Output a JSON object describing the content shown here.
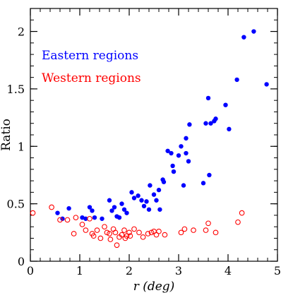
{
  "colors": {
    "eastern": "#0000ff",
    "western": "#ff0000",
    "axis": "#000000",
    "background": "#ffffff"
  },
  "legend": {
    "eastern": "Eastern regions",
    "western": "Western regions"
  },
  "chart_data": {
    "type": "scatter",
    "xlabel": "r (deg)",
    "ylabel": "Ratio",
    "xlim": [
      0,
      5
    ],
    "ylim": [
      0,
      2.2
    ],
    "x_ticks": [
      0,
      1,
      2,
      3,
      4,
      5
    ],
    "y_ticks": [
      0,
      0.5,
      1,
      1.5,
      2
    ],
    "y_tick_labels": [
      "0",
      "0.5",
      "1",
      "1.5",
      "2"
    ],
    "x_minor_step": 0.2,
    "y_minor_step": 0.1,
    "grid": false,
    "legend_position": "top-left",
    "series": [
      {
        "name": "Eastern regions",
        "marker": "filled-circle",
        "color": "#0000ff",
        "points": [
          [
            0.55,
            0.42
          ],
          [
            0.65,
            0.37
          ],
          [
            0.78,
            0.46
          ],
          [
            1.05,
            0.38
          ],
          [
            1.12,
            0.37
          ],
          [
            1.2,
            0.47
          ],
          [
            1.25,
            0.44
          ],
          [
            1.3,
            0.38
          ],
          [
            1.45,
            0.37
          ],
          [
            1.6,
            0.53
          ],
          [
            1.65,
            0.44
          ],
          [
            1.7,
            0.47
          ],
          [
            1.75,
            0.39
          ],
          [
            1.8,
            0.38
          ],
          [
            1.85,
            0.5
          ],
          [
            1.9,
            0.45
          ],
          [
            1.95,
            0.42
          ],
          [
            2.05,
            0.6
          ],
          [
            2.1,
            0.55
          ],
          [
            2.18,
            0.57
          ],
          [
            2.25,
            0.53
          ],
          [
            2.3,
            0.48
          ],
          [
            2.35,
            0.52
          ],
          [
            2.4,
            0.45
          ],
          [
            2.42,
            0.66
          ],
          [
            2.5,
            0.58
          ],
          [
            2.55,
            0.53
          ],
          [
            2.6,
            0.62
          ],
          [
            2.62,
            0.45
          ],
          [
            2.68,
            0.71
          ],
          [
            2.7,
            0.69
          ],
          [
            2.78,
            0.96
          ],
          [
            2.85,
            0.94
          ],
          [
            2.88,
            0.83
          ],
          [
            2.9,
            0.78
          ],
          [
            3.0,
            0.92
          ],
          [
            3.05,
            1.0
          ],
          [
            3.1,
            0.66
          ],
          [
            3.15,
            0.94
          ],
          [
            3.15,
            1.07
          ],
          [
            3.2,
            0.87
          ],
          [
            3.22,
            1.19
          ],
          [
            3.5,
            0.68
          ],
          [
            3.55,
            1.2
          ],
          [
            3.6,
            1.42
          ],
          [
            3.62,
            0.75
          ],
          [
            3.65,
            1.2
          ],
          [
            3.72,
            1.22
          ],
          [
            3.75,
            1.24
          ],
          [
            3.95,
            1.36
          ],
          [
            4.02,
            1.15
          ],
          [
            4.18,
            1.58
          ],
          [
            4.32,
            1.95
          ],
          [
            4.52,
            2.0
          ],
          [
            4.78,
            1.54
          ]
        ]
      },
      {
        "name": "Western regions",
        "marker": "open-circle",
        "color": "#ff0000",
        "points": [
          [
            0.05,
            0.42
          ],
          [
            0.43,
            0.47
          ],
          [
            0.6,
            0.36
          ],
          [
            0.75,
            0.36
          ],
          [
            0.88,
            0.24
          ],
          [
            0.92,
            0.38
          ],
          [
            1.05,
            0.32
          ],
          [
            1.12,
            0.27
          ],
          [
            1.2,
            0.37
          ],
          [
            1.25,
            0.24
          ],
          [
            1.28,
            0.22
          ],
          [
            1.35,
            0.27
          ],
          [
            1.42,
            0.2
          ],
          [
            1.5,
            0.3
          ],
          [
            1.55,
            0.25
          ],
          [
            1.6,
            0.24
          ],
          [
            1.62,
            0.19
          ],
          [
            1.68,
            0.28
          ],
          [
            1.72,
            0.25
          ],
          [
            1.75,
            0.14
          ],
          [
            1.8,
            0.21
          ],
          [
            1.85,
            0.23
          ],
          [
            1.9,
            0.27
          ],
          [
            1.92,
            0.2
          ],
          [
            1.95,
            0.22
          ],
          [
            2.0,
            0.25
          ],
          [
            2.02,
            0.22
          ],
          [
            2.1,
            0.28
          ],
          [
            2.2,
            0.25
          ],
          [
            2.28,
            0.21
          ],
          [
            2.38,
            0.24
          ],
          [
            2.45,
            0.25
          ],
          [
            2.5,
            0.26
          ],
          [
            2.55,
            0.23
          ],
          [
            2.6,
            0.26
          ],
          [
            2.72,
            0.23
          ],
          [
            3.05,
            0.25
          ],
          [
            3.12,
            0.28
          ],
          [
            3.3,
            0.27
          ],
          [
            3.55,
            0.27
          ],
          [
            3.6,
            0.33
          ],
          [
            3.75,
            0.25
          ],
          [
            4.2,
            0.34
          ],
          [
            4.28,
            0.42
          ]
        ]
      }
    ]
  }
}
